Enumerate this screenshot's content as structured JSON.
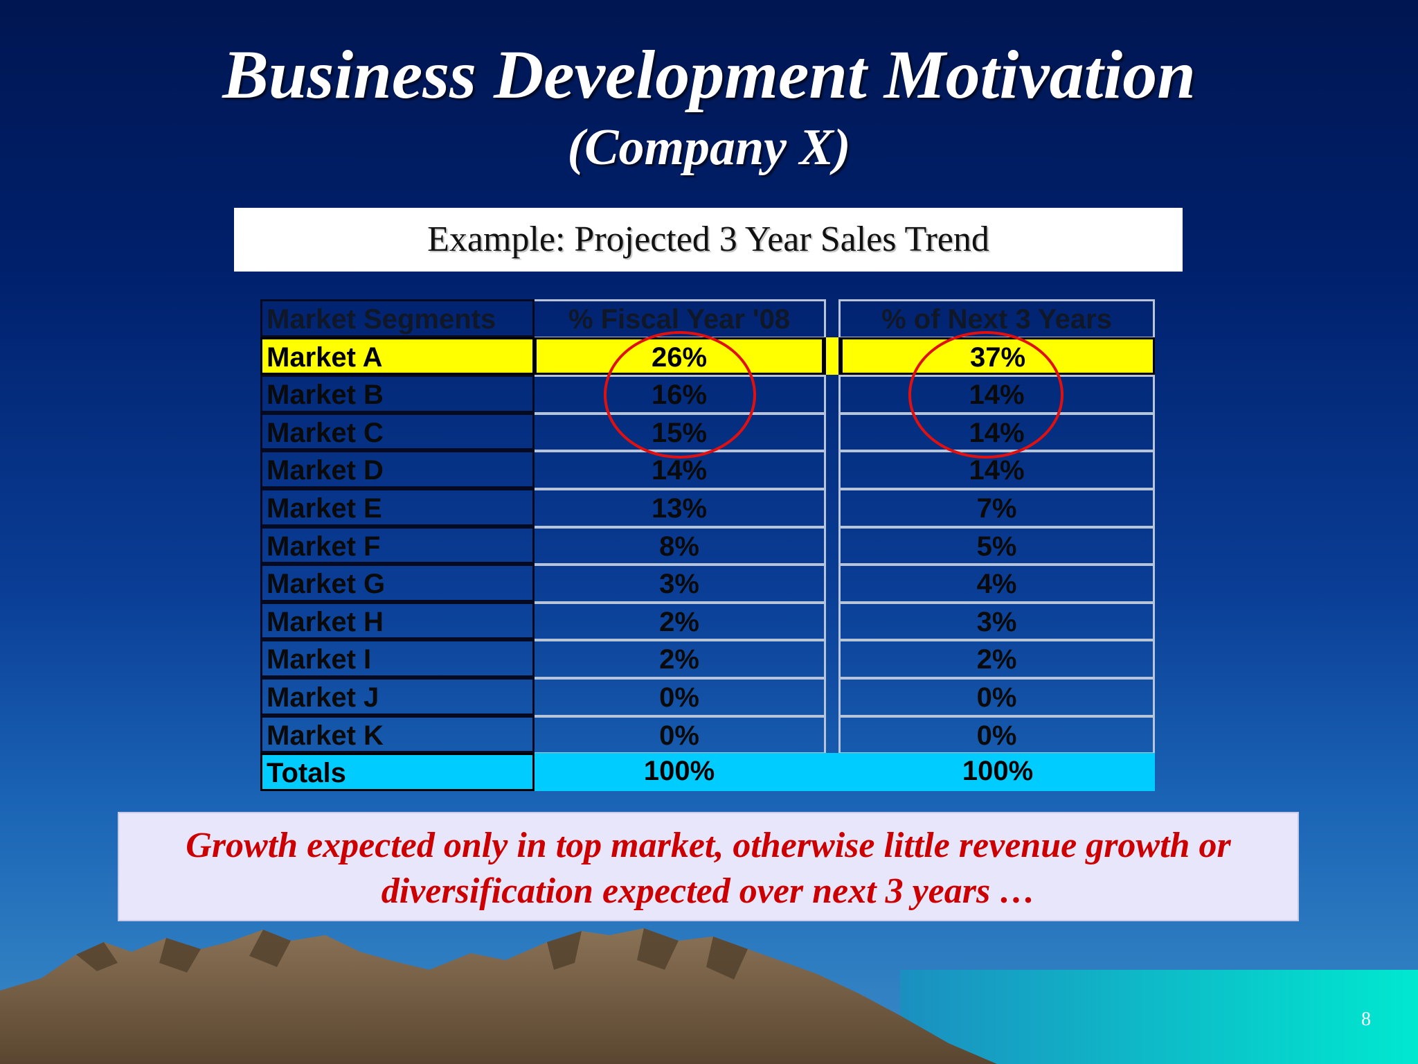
{
  "slide": {
    "title": "Business Development Motivation",
    "subtitle": "(Company X)",
    "example_label": "Example: Projected 3 Year Sales Trend",
    "conclusion_line1": "Growth expected only in top market, otherwise little revenue growth or",
    "conclusion_line2": "diversification expected over next 3 years …",
    "page_number": "8"
  },
  "table": {
    "headers": [
      "Market Segments",
      "% Fiscal Year '08",
      "% of Next 3 Years"
    ],
    "rows": [
      {
        "segment": "Market A",
        "fy08": "26%",
        "next3": "37%"
      },
      {
        "segment": "Market B",
        "fy08": "16%",
        "next3": "14%"
      },
      {
        "segment": "Market C",
        "fy08": "15%",
        "next3": "14%"
      },
      {
        "segment": "Market D",
        "fy08": "14%",
        "next3": "14%"
      },
      {
        "segment": "Market E",
        "fy08": "13%",
        "next3": "7%"
      },
      {
        "segment": "Market F",
        "fy08": "8%",
        "next3": "5%"
      },
      {
        "segment": "Market G",
        "fy08": "3%",
        "next3": "4%"
      },
      {
        "segment": "Market H",
        "fy08": "2%",
        "next3": "3%"
      },
      {
        "segment": "Market I",
        "fy08": "2%",
        "next3": "2%"
      },
      {
        "segment": "Market J",
        "fy08": "0%",
        "next3": "0%"
      },
      {
        "segment": "Market K",
        "fy08": "0%",
        "next3": "0%"
      }
    ],
    "totals": {
      "segment": "Totals",
      "fy08": "100%",
      "next3": "100%"
    }
  },
  "colors": {
    "highlight_row": "#ffff00",
    "totals_row": "#00ccff",
    "circle_annotation": "#e01010",
    "conclusion_text": "#cc0000"
  }
}
